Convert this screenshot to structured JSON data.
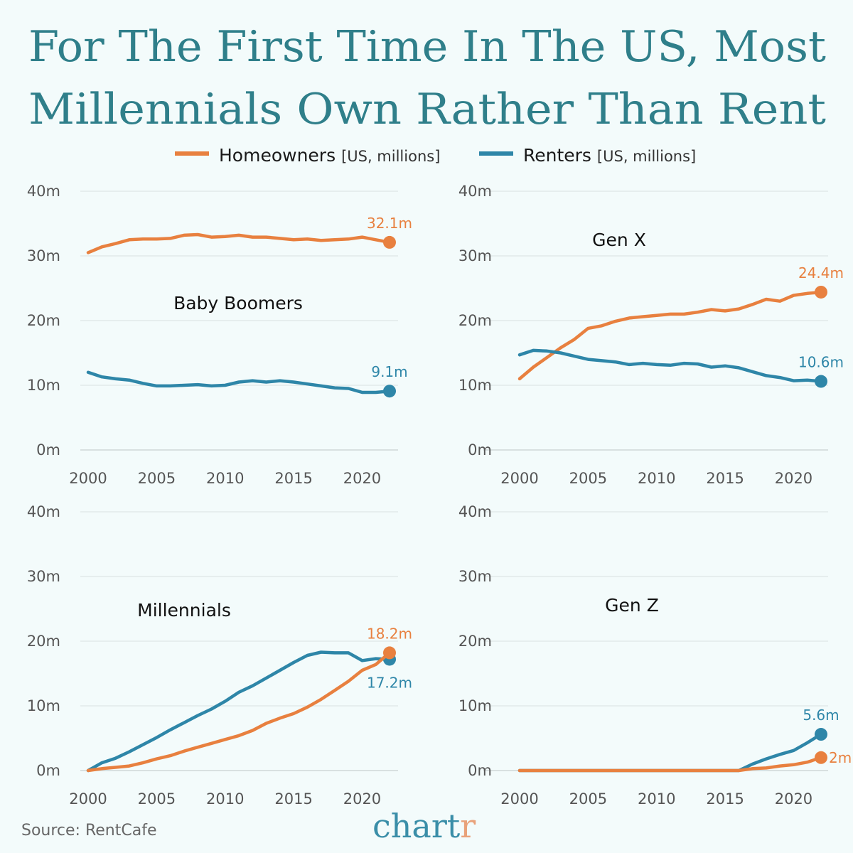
{
  "title_lines": [
    "For The First Time In The US, Most",
    "Millennials Own Rather Than Rent"
  ],
  "legend": [
    {
      "name": "Homeowners",
      "unit": "[US, millions]",
      "color": "#e8803f"
    },
    {
      "name": "Renters",
      "unit": "[US, millions]",
      "color": "#2e86a8"
    }
  ],
  "source": "Source: RentCafe",
  "logo": {
    "text_main": "chart",
    "text_accent": "r",
    "main_color": "#3a8ea8",
    "accent_color": "#e9a27a"
  },
  "colors": {
    "background": "#f3fbfb",
    "title": "#2f7f8a",
    "grid": "#dde6e6"
  },
  "chart_data": [
    {
      "type": "line",
      "title": "Baby Boomers",
      "xlim": [
        2000,
        2022
      ],
      "ylim": [
        0,
        40
      ],
      "x_ticks": [
        "2000",
        "2005",
        "2010",
        "2015",
        "2020"
      ],
      "y_ticks": [
        "0m",
        "10m",
        "20m",
        "30m",
        "40m"
      ],
      "grid": true,
      "x": [
        2000,
        2001,
        2002,
        2003,
        2004,
        2005,
        2006,
        2007,
        2008,
        2009,
        2010,
        2011,
        2012,
        2013,
        2014,
        2015,
        2016,
        2017,
        2018,
        2019,
        2020,
        2021,
        2022
      ],
      "series": [
        {
          "name": "Homeowners",
          "values": [
            30.5,
            31.4,
            31.9,
            32.5,
            32.6,
            32.6,
            32.7,
            33.2,
            33.3,
            32.9,
            33.0,
            33.2,
            32.9,
            32.9,
            32.7,
            32.5,
            32.6,
            32.4,
            32.5,
            32.6,
            32.9,
            32.5,
            32.1
          ],
          "end_label": "32.1m",
          "label_pos": "above"
        },
        {
          "name": "Renters",
          "values": [
            12.0,
            11.3,
            11.0,
            10.8,
            10.3,
            9.9,
            9.9,
            10.0,
            10.1,
            9.9,
            10.0,
            10.5,
            10.7,
            10.5,
            10.7,
            10.5,
            10.2,
            9.9,
            9.6,
            9.5,
            8.9,
            8.9,
            9.1
          ],
          "end_label": "9.1m",
          "label_pos": "above"
        }
      ]
    },
    {
      "type": "line",
      "title": "Gen X",
      "xlim": [
        2000,
        2022
      ],
      "ylim": [
        0,
        40
      ],
      "x_ticks": [
        "2000",
        "2005",
        "2010",
        "2015",
        "2020"
      ],
      "y_ticks": [
        "0m",
        "10m",
        "20m",
        "30m",
        "40m"
      ],
      "grid": true,
      "x": [
        2000,
        2001,
        2002,
        2003,
        2004,
        2005,
        2006,
        2007,
        2008,
        2009,
        2010,
        2011,
        2012,
        2013,
        2014,
        2015,
        2016,
        2017,
        2018,
        2019,
        2020,
        2021,
        2022
      ],
      "series": [
        {
          "name": "Homeowners",
          "values": [
            11.0,
            12.8,
            14.3,
            15.8,
            17.1,
            18.8,
            19.2,
            19.9,
            20.4,
            20.6,
            20.8,
            21.0,
            21.0,
            21.3,
            21.7,
            21.5,
            21.8,
            22.5,
            23.3,
            23.0,
            23.9,
            24.2,
            24.4
          ],
          "end_label": "24.4m",
          "label_pos": "above"
        },
        {
          "name": "Renters",
          "values": [
            14.7,
            15.4,
            15.3,
            15.0,
            14.5,
            14.0,
            13.8,
            13.6,
            13.2,
            13.4,
            13.2,
            13.1,
            13.4,
            13.3,
            12.8,
            13.0,
            12.7,
            12.1,
            11.5,
            11.2,
            10.7,
            10.8,
            10.6
          ],
          "end_label": "10.6m",
          "label_pos": "above"
        }
      ]
    },
    {
      "type": "line",
      "title": "Millennials",
      "xlim": [
        2000,
        2022
      ],
      "ylim": [
        0,
        40
      ],
      "x_ticks": [
        "2000",
        "2005",
        "2010",
        "2015",
        "2020"
      ],
      "y_ticks": [
        "0m",
        "10m",
        "20m",
        "30m",
        "40m"
      ],
      "grid": true,
      "x": [
        2000,
        2001,
        2002,
        2003,
        2004,
        2005,
        2006,
        2007,
        2008,
        2009,
        2010,
        2011,
        2012,
        2013,
        2014,
        2015,
        2016,
        2017,
        2018,
        2019,
        2020,
        2021,
        2022
      ],
      "series": [
        {
          "name": "Renters",
          "values": [
            0,
            1.2,
            1.9,
            2.9,
            4.0,
            5.1,
            6.3,
            7.4,
            8.5,
            9.5,
            10.7,
            12.1,
            13.1,
            14.3,
            15.5,
            16.7,
            17.8,
            18.3,
            18.2,
            18.2,
            17.0,
            17.3,
            17.2
          ],
          "end_label": "17.2m",
          "label_pos": "below"
        },
        {
          "name": "Homeowners",
          "values": [
            0,
            0.3,
            0.5,
            0.7,
            1.2,
            1.8,
            2.3,
            3.0,
            3.6,
            4.2,
            4.8,
            5.4,
            6.2,
            7.3,
            8.1,
            8.8,
            9.8,
            11.0,
            12.4,
            13.8,
            15.5,
            16.4,
            18.2
          ],
          "end_label": "18.2m",
          "label_pos": "above"
        }
      ]
    },
    {
      "type": "line",
      "title": "Gen Z",
      "xlim": [
        2000,
        2022
      ],
      "ylim": [
        0,
        40
      ],
      "x_ticks": [
        "2000",
        "2005",
        "2010",
        "2015",
        "2020"
      ],
      "y_ticks": [
        "0m",
        "10m",
        "20m",
        "30m",
        "40m"
      ],
      "grid": true,
      "x": [
        2000,
        2001,
        2002,
        2003,
        2004,
        2005,
        2006,
        2007,
        2008,
        2009,
        2010,
        2011,
        2012,
        2013,
        2014,
        2015,
        2016,
        2017,
        2018,
        2019,
        2020,
        2021,
        2022
      ],
      "series": [
        {
          "name": "Renters",
          "values": [
            0,
            0,
            0,
            0,
            0,
            0,
            0,
            0,
            0,
            0,
            0,
            0,
            0,
            0,
            0,
            0,
            0,
            1.0,
            1.8,
            2.5,
            3.1,
            4.3,
            5.6
          ],
          "end_label": "5.6m",
          "label_pos": "above"
        },
        {
          "name": "Homeowners",
          "values": [
            0,
            0,
            0,
            0,
            0,
            0,
            0,
            0,
            0,
            0,
            0,
            0,
            0,
            0,
            0,
            0,
            0,
            0.3,
            0.4,
            0.7,
            0.9,
            1.3,
            2.0
          ],
          "end_label": "2m",
          "label_pos": "right"
        }
      ]
    }
  ]
}
